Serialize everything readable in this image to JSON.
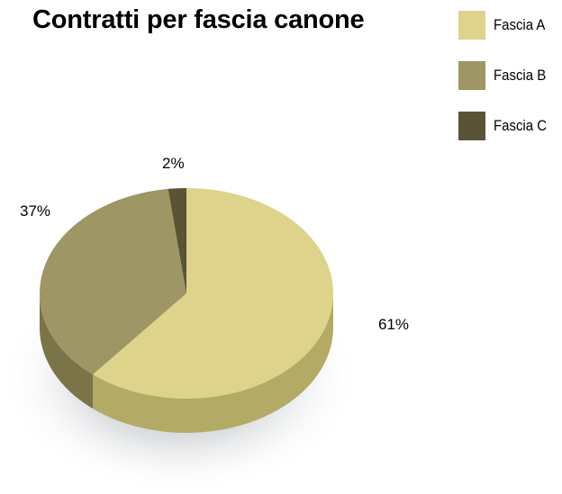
{
  "chart_data": {
    "type": "pie",
    "title": "Contratti per fascia canone",
    "categories": [
      "Fascia A",
      "Fascia B",
      "Fascia C"
    ],
    "values": [
      61,
      37,
      2
    ],
    "value_labels": [
      "61%",
      "37%",
      "2%"
    ],
    "colors": [
      "#ddd38a",
      "#9e9664",
      "#5b5338"
    ],
    "side_colors": [
      "#b3aa66",
      "#7c7449",
      "#403a24"
    ],
    "legend_position": "top-right",
    "style": "3d"
  }
}
